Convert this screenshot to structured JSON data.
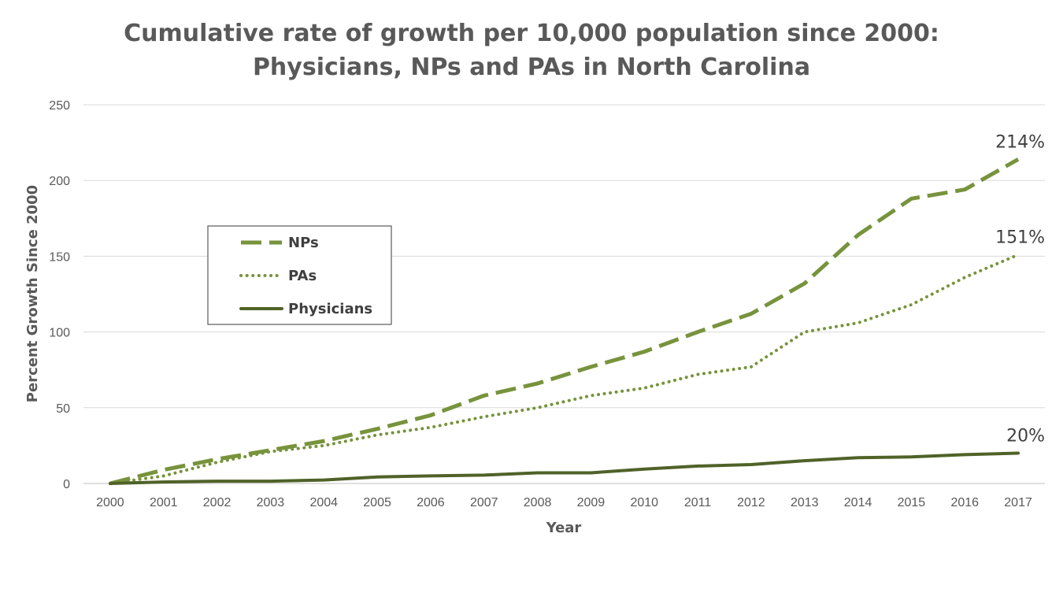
{
  "chart_data": {
    "type": "line",
    "title_lines": [
      "Cumulative rate of growth per 10,000 population since 2000:",
      "Physicians, NPs and PAs in North Carolina"
    ],
    "xlabel": "Year",
    "ylabel": "Percent Growth Since 2000",
    "x": [
      "2000",
      "2001",
      "2002",
      "2003",
      "2004",
      "2005",
      "2006",
      "2007",
      "2008",
      "2009",
      "2010",
      "2011",
      "2012",
      "2013",
      "2014",
      "2015",
      "2016",
      "2017"
    ],
    "ylim": [
      0,
      250
    ],
    "yticks": [
      0,
      50,
      100,
      150,
      200,
      250
    ],
    "grid": true,
    "legend_position": "upper-left",
    "series": [
      {
        "name": "NPs",
        "style": "dashed",
        "color": "#77933C",
        "values": [
          0,
          9,
          16,
          22,
          28,
          36,
          45,
          58,
          66,
          77,
          87,
          100,
          112,
          132,
          164,
          188,
          194,
          214
        ],
        "end_label": "214%"
      },
      {
        "name": "PAs",
        "style": "dotted",
        "color": "#77933C",
        "values": [
          0,
          5,
          14,
          21,
          25,
          32,
          37,
          44,
          50,
          58,
          63,
          72,
          77,
          100,
          106,
          118,
          136,
          151
        ],
        "end_label": "151%"
      },
      {
        "name": "Physicians",
        "style": "solid",
        "color": "#4F6228",
        "values": [
          0,
          1,
          1.5,
          1.5,
          2.3,
          4.3,
          5,
          5.5,
          7,
          7,
          9.5,
          11.5,
          12.5,
          15,
          17,
          17.5,
          19,
          20
        ],
        "end_label": "20%"
      }
    ]
  }
}
